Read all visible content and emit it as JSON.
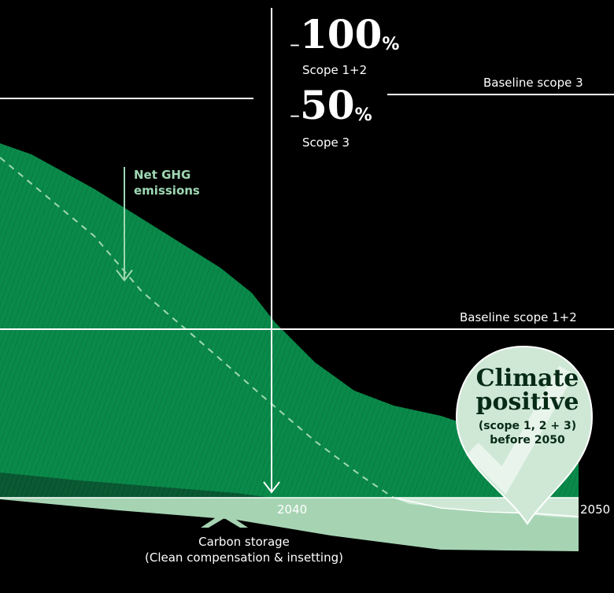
{
  "targets": {
    "scope12": {
      "dash": "–",
      "value": "100",
      "unit": "%",
      "label": "Scope 1+2"
    },
    "scope3": {
      "dash": "–",
      "value": "50",
      "unit": "%",
      "label": "Scope 3"
    }
  },
  "baselines": {
    "scope3": "Baseline scope 3",
    "scope12": "Baseline scope 1+2"
  },
  "net_ghg_label": [
    "Net GHG",
    "emissions"
  ],
  "badge": {
    "title": [
      "Climate",
      "positive"
    ],
    "subtitle": [
      "(scope 1, 2 + 3)",
      "before 2050"
    ]
  },
  "carbon_storage_label": [
    "Carbon storage",
    "(Clean compensation & insetting)"
  ],
  "colors": {
    "background": "#000000",
    "emissions_green": "#0a8a4a",
    "emissions_dark": "#0a5a34",
    "storage_light": "#a6d4b3",
    "storage_lighter": "#cfe8d6",
    "badge_fill": "#cfe8d6",
    "arrow_green": "#9fd8b4"
  },
  "chart_data": {
    "type": "area",
    "x_ticks": [
      "2040",
      "2050"
    ],
    "series": [],
    "notes": "Emissions pathway declining from baseline toward net-zero, with carbon storage below zero line by 2050"
  }
}
